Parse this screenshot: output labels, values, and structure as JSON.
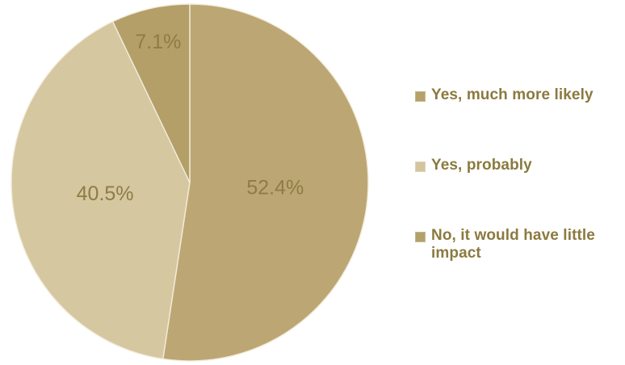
{
  "chart_data": {
    "type": "pie",
    "categories": [
      "Yes, much more likely",
      "Yes, probably",
      "No, it would have little impact"
    ],
    "values": [
      52.4,
      40.5,
      7.1
    ],
    "data_labels": [
      "52.4%",
      "40.5%",
      "7.1%"
    ],
    "colors": [
      "#bca774",
      "#d5c7a0",
      "#b49f68"
    ],
    "label_color": "#8e7c43",
    "legend_text_color": "#8b7a3f",
    "edge_color": "#f3ecdc",
    "legend_position": "right",
    "start": "12 o'clock",
    "direction": "clockwise",
    "title": ""
  },
  "legend": {
    "items": [
      {
        "label": "Yes, much more likely",
        "color": "#b6a16a"
      },
      {
        "label": "Yes, probably",
        "color": "#d4c59e"
      },
      {
        "label": "No, it would have little impact",
        "color": "#b3a06b"
      }
    ]
  }
}
